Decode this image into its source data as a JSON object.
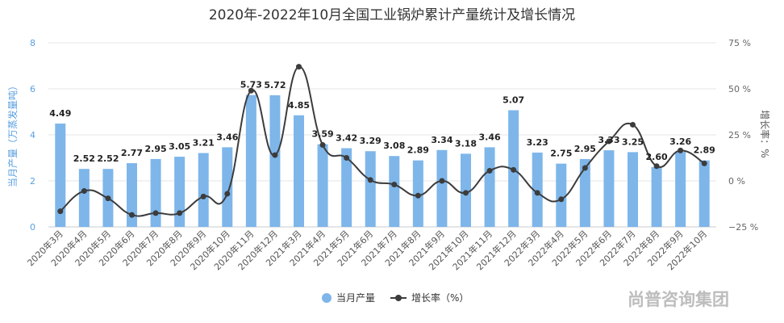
{
  "chart_data": {
    "type": "bar+line",
    "title": "2020年-2022年10月全国工业锅炉累计产量统计及增长情况",
    "categories": [
      "2020年3月",
      "2020年4月",
      "2020年5月",
      "2020年6月",
      "2020年7月",
      "2020年8月",
      "2020年9月",
      "2020年10月",
      "2020年11月",
      "2020年12月",
      "2021年3月",
      "2021年4月",
      "2021年5月",
      "2021年6月",
      "2021年7月",
      "2021年8月",
      "2021年9月",
      "2021年10月",
      "2021年11月",
      "2021年12月",
      "2022年3月",
      "2022年4月",
      "2022年5月",
      "2022年6月",
      "2022年7月",
      "2022年8月",
      "2022年9月",
      "2022年10月"
    ],
    "series": [
      {
        "name": "当月产量",
        "type": "bar",
        "axis": "left",
        "color": "#7eb6ea",
        "values": [
          4.49,
          2.52,
          2.52,
          2.77,
          2.95,
          3.05,
          3.21,
          3.46,
          5.73,
          5.72,
          4.85,
          3.59,
          3.42,
          3.29,
          3.08,
          2.89,
          3.34,
          3.18,
          3.46,
          5.07,
          3.23,
          2.75,
          2.95,
          3.33,
          3.25,
          2.6,
          3.26,
          2.89
        ]
      },
      {
        "name": "增长率（%）",
        "type": "line",
        "axis": "right",
        "color": "#3c3c3c",
        "values": [
          -16.5,
          -5.5,
          -9.5,
          -18.5,
          -17.5,
          -17.5,
          -8.5,
          -7,
          49,
          14,
          62,
          19.5,
          12.5,
          0.5,
          -2,
          -8,
          0,
          -6.5,
          5.5,
          6,
          -6.5,
          -10,
          7,
          21.5,
          30.5,
          8,
          16.5,
          9.5
        ]
      }
    ],
    "y_left": {
      "label": "当月产量（万蒸发量吨）",
      "ylim": [
        0,
        8
      ],
      "ticks": [
        0,
        2,
        4,
        6,
        8
      ]
    },
    "y_right": {
      "label": "增长率：%",
      "ylim": [
        -25,
        75
      ],
      "ticks": [
        "−25 %",
        "0 %",
        "25 %",
        "50 %",
        "75 %"
      ]
    },
    "legend": [
      {
        "label": "当月产量"
      },
      {
        "label": "增长率（%）"
      }
    ],
    "watermark": "尚普咨询集团"
  }
}
